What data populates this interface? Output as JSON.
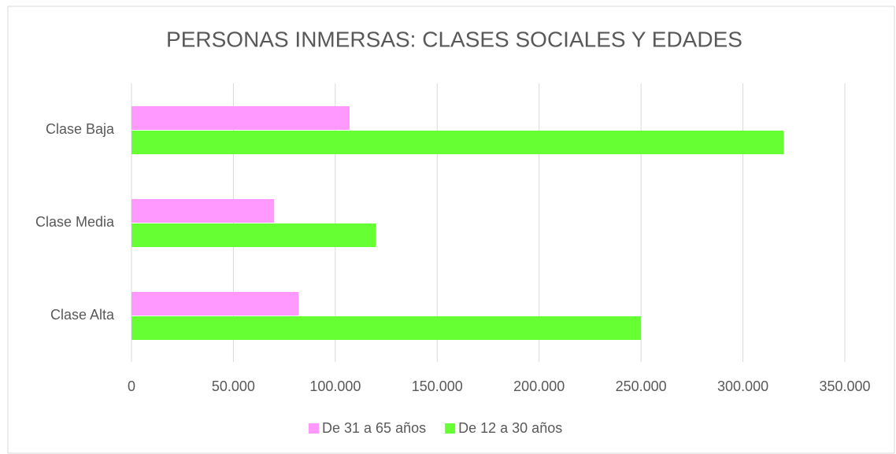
{
  "chart_data": {
    "type": "hbar",
    "title": "PERSONAS INMERSAS: CLASES SOCIALES Y EDADES",
    "categories": [
      "Clase Baja",
      "Clase Media",
      "Clase Alta"
    ],
    "series": [
      {
        "name": "De 31 a 65 años",
        "color": "#ff99ff",
        "values": [
          107000,
          70000,
          82000
        ]
      },
      {
        "name": "De 12 a 30 años",
        "color": "#66ff33",
        "values": [
          320000,
          120000,
          250000
        ]
      }
    ],
    "xlim": [
      0,
      350000
    ],
    "xticks": [
      0,
      {
        "value": 50000,
        "label": "50.000"
      },
      {
        "value": 100000,
        "label": "100.000"
      },
      {
        "value": 150000,
        "label": "150.000"
      },
      {
        "value": 200000,
        "label": "200.000"
      },
      {
        "value": 250000,
        "label": "250.000"
      },
      {
        "value": 300000,
        "label": "300.000"
      },
      {
        "value": 350000,
        "label": "350.000"
      }
    ],
    "grid": true,
    "legend": "bottom"
  }
}
